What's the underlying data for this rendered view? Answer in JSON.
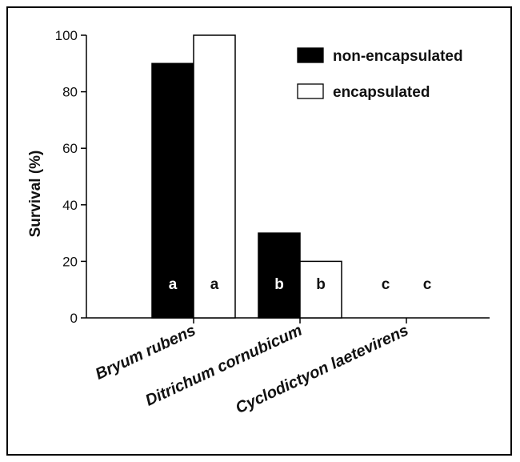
{
  "chart_data": {
    "type": "bar",
    "title": "",
    "xlabel": "",
    "ylabel": "Survival (%)",
    "ylim": [
      0,
      100
    ],
    "yticks": [
      0,
      20,
      40,
      60,
      80,
      100
    ],
    "categories": [
      "Bryum rubens",
      "Ditrichum cornubicum",
      "Cyclodictyon laetevirens"
    ],
    "series": [
      {
        "name": "non-encapsulated",
        "color": "#000000",
        "values": [
          90,
          30,
          0
        ],
        "labels": [
          "a",
          "b",
          "c"
        ]
      },
      {
        "name": "encapsulated",
        "color": "#ffffff",
        "values": [
          100,
          20,
          0
        ],
        "labels": [
          "a",
          "b",
          "c"
        ]
      }
    ],
    "legend": "top-right",
    "grid": false
  }
}
